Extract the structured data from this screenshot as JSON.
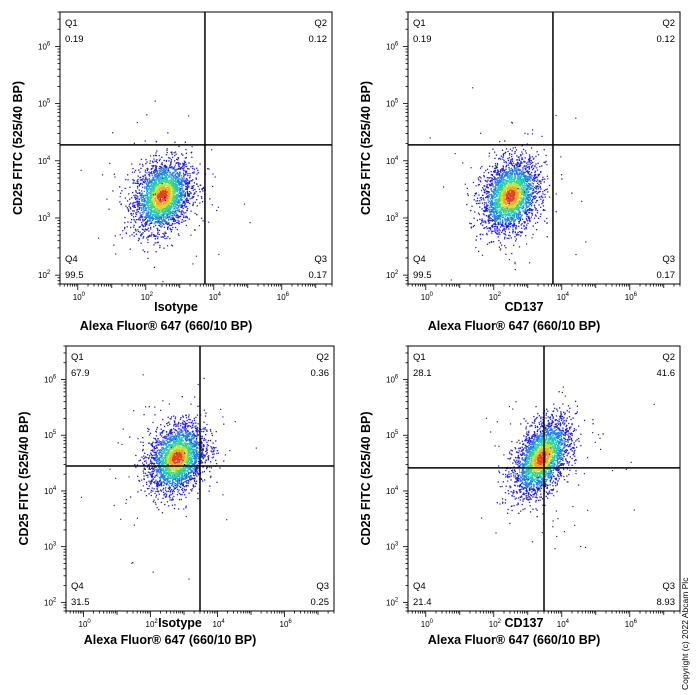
{
  "copyright": "Copyright (c) 2022 Abcam Plc",
  "chart_data": [
    {
      "type": "scatter",
      "panel": "top-left",
      "xlabel_top": "Isotype",
      "xlabel": "Alexa Fluor® 647  (660/10 BP)",
      "ylabel": "CD25 FITC (525/40 BP)",
      "x_scale": "log",
      "y_scale": "log",
      "xlim": [
        0.3,
        30000000
      ],
      "ylim": [
        70,
        4000000
      ],
      "x_ticks": [
        "0",
        "2",
        "4",
        "6"
      ],
      "y_ticks": [
        "2",
        "3",
        "4",
        "5",
        "6"
      ],
      "x_gate": 5500,
      "y_gate": 19000,
      "quadrants": [
        {
          "name": "Q1",
          "percent": "0.19",
          "position": "top-left"
        },
        {
          "name": "Q2",
          "percent": "0.12",
          "position": "top-right"
        },
        {
          "name": "Q3",
          "percent": "0.17",
          "position": "bottom-right"
        },
        {
          "name": "Q4",
          "percent": "99.5",
          "position": "bottom-left"
        }
      ],
      "population_center": [
        300,
        2500
      ]
    },
    {
      "type": "scatter",
      "panel": "top-right",
      "xlabel_top": "CD137",
      "xlabel": "Alexa Fluor® 647  (660/10 BP)",
      "ylabel": "CD25 FITC (525/40 BP)",
      "x_scale": "log",
      "y_scale": "log",
      "xlim": [
        0.3,
        30000000
      ],
      "ylim": [
        70,
        4000000
      ],
      "x_ticks": [
        "0",
        "2",
        "4",
        "6"
      ],
      "y_ticks": [
        "2",
        "3",
        "4",
        "5",
        "6"
      ],
      "x_gate": 5500,
      "y_gate": 19000,
      "quadrants": [
        {
          "name": "Q1",
          "percent": "0.19",
          "position": "top-left"
        },
        {
          "name": "Q2",
          "percent": "0.12",
          "position": "top-right"
        },
        {
          "name": "Q3",
          "percent": "0.17",
          "position": "bottom-right"
        },
        {
          "name": "Q4",
          "percent": "99.5",
          "position": "bottom-left"
        }
      ],
      "population_center": [
        300,
        2500
      ]
    },
    {
      "type": "scatter",
      "panel": "bottom-left",
      "xlabel_top": "Isotype",
      "xlabel": "Alexa Fluor® 647  (660/10 BP)",
      "ylabel": "CD25 FITC (525/40 BP)",
      "x_scale": "log",
      "y_scale": "log",
      "xlim": [
        0.3,
        30000000
      ],
      "ylim": [
        70,
        4000000
      ],
      "x_ticks": [
        "0",
        "2",
        "4",
        "6"
      ],
      "y_ticks": [
        "2",
        "3",
        "4",
        "5",
        "6"
      ],
      "x_gate": 3000,
      "y_gate": 28000,
      "quadrants": [
        {
          "name": "Q1",
          "percent": "67.9",
          "position": "top-left"
        },
        {
          "name": "Q2",
          "percent": "0.36",
          "position": "top-right"
        },
        {
          "name": "Q3",
          "percent": "0.25",
          "position": "bottom-right"
        },
        {
          "name": "Q4",
          "percent": "31.5",
          "position": "bottom-left"
        }
      ],
      "population_center": [
        600,
        40000
      ]
    },
    {
      "type": "scatter",
      "panel": "bottom-right",
      "xlabel_top": "CD137",
      "xlabel": "Alexa Fluor® 647  (660/10 BP)",
      "ylabel": "CD25 FITC (525/40 BP)",
      "x_scale": "log",
      "y_scale": "log",
      "xlim": [
        0.3,
        30000000
      ],
      "ylim": [
        70,
        4000000
      ],
      "x_ticks": [
        "0",
        "2",
        "4",
        "6"
      ],
      "y_ticks": [
        "2",
        "3",
        "4",
        "5",
        "6"
      ],
      "x_gate": 3000,
      "y_gate": 26000,
      "quadrants": [
        {
          "name": "Q1",
          "percent": "28.1",
          "position": "top-left"
        },
        {
          "name": "Q2",
          "percent": "41.6",
          "position": "top-right"
        },
        {
          "name": "Q3",
          "percent": "8.93",
          "position": "bottom-right"
        },
        {
          "name": "Q4",
          "percent": "21.4",
          "position": "bottom-left"
        }
      ],
      "population_center": [
        2500,
        40000
      ]
    }
  ],
  "density_colors": [
    "#1d1dd6",
    "#1f7ee8",
    "#19c6c6",
    "#3fd67a",
    "#c8e02a",
    "#f5a623",
    "#e5401f"
  ]
}
